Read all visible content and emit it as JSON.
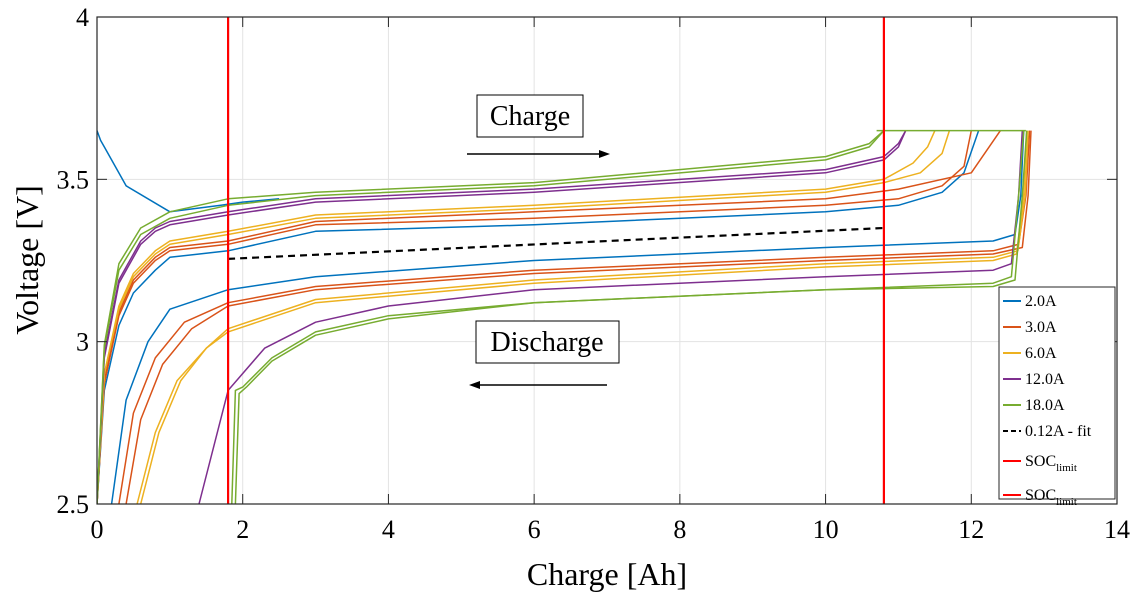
{
  "chart_data": {
    "type": "line",
    "xlabel": "Charge [Ah]",
    "ylabel": "Voltage [V]",
    "xlim": [
      0,
      14
    ],
    "ylim": [
      2.5,
      4
    ],
    "xticks": [
      0,
      2,
      4,
      6,
      8,
      10,
      12,
      14
    ],
    "yticks": [
      2.5,
      3,
      3.5,
      4
    ],
    "ytick_labels": [
      "2.5",
      "3",
      "3.5",
      "4"
    ],
    "grid": true,
    "legend_position": "right",
    "annotations": [
      {
        "text": "Charge",
        "arrow": "right"
      },
      {
        "text": "Discharge",
        "arrow": "left"
      }
    ],
    "soc_limits": [
      1.8,
      10.8
    ],
    "series": [
      {
        "name": "2.0A",
        "color": "#0072BD",
        "curves": [
          {
            "x": [
              0,
              0.1,
              0.3,
              0.5,
              0.8,
              1.0,
              1.8,
              3.0,
              6.0,
              10.0,
              11.0,
              11.6,
              11.9,
              12.1
            ],
            "y": [
              2.5,
              2.85,
              3.05,
              3.15,
              3.22,
              3.26,
              3.28,
              3.34,
              3.36,
              3.4,
              3.42,
              3.46,
              3.52,
              3.65
            ]
          },
          {
            "x": [
              0,
              0.05,
              0.1,
              0.4,
              1.0,
              1.7,
              2.0,
              2.5
            ],
            "y": [
              3.65,
              3.62,
              3.6,
              3.48,
              3.4,
              3.42,
              3.43,
              3.44
            ]
          },
          {
            "x": [
              0.2,
              0.4,
              0.7,
              1.0,
              1.8,
              3.0,
              6.0,
              10.0,
              12.3,
              12.6,
              12.68,
              12.72
            ],
            "y": [
              2.5,
              2.82,
              3.0,
              3.1,
              3.16,
              3.2,
              3.25,
              3.29,
              3.31,
              3.33,
              3.45,
              3.65
            ]
          }
        ]
      },
      {
        "name": "3.0A",
        "color": "#D95319",
        "curves": [
          {
            "x": [
              0,
              0.1,
              0.3,
              0.5,
              0.8,
              1.0,
              1.8,
              3.0,
              6.0,
              10.0,
              11.0,
              11.6,
              11.9,
              12.0
            ],
            "y": [
              2.5,
              2.87,
              3.08,
              3.18,
              3.25,
              3.28,
              3.3,
              3.36,
              3.38,
              3.42,
              3.44,
              3.48,
              3.54,
              3.65
            ]
          },
          {
            "x": [
              0,
              0.1,
              0.3,
              0.5,
              0.8,
              1.0,
              1.8,
              3.0,
              6.0,
              10.0,
              11.0,
              12.0,
              12.4
            ],
            "y": [
              2.5,
              2.88,
              3.09,
              3.19,
              3.26,
              3.29,
              3.31,
              3.37,
              3.4,
              3.44,
              3.47,
              3.52,
              3.65
            ]
          },
          {
            "x": [
              0.3,
              0.5,
              0.8,
              1.2,
              1.8,
              3.0,
              6.0,
              10.0,
              12.3,
              12.65,
              12.75,
              12.8
            ],
            "y": [
              2.5,
              2.78,
              2.95,
              3.06,
              3.12,
              3.17,
              3.22,
              3.26,
              3.28,
              3.3,
              3.45,
              3.65
            ]
          },
          {
            "x": [
              0.4,
              0.6,
              0.9,
              1.3,
              1.8,
              3.0,
              6.0,
              10.0,
              12.3,
              12.7,
              12.78,
              12.82
            ],
            "y": [
              2.5,
              2.76,
              2.93,
              3.04,
              3.11,
              3.16,
              3.21,
              3.25,
              3.27,
              3.29,
              3.45,
              3.65
            ]
          }
        ]
      },
      {
        "name": "6.0A",
        "color": "#EDB120",
        "curves": [
          {
            "x": [
              0,
              0.1,
              0.3,
              0.5,
              0.8,
              1.0,
              1.8,
              3.0,
              6.0,
              10.0,
              10.8,
              11.3,
              11.6,
              11.7
            ],
            "y": [
              2.5,
              2.9,
              3.1,
              3.2,
              3.27,
              3.3,
              3.33,
              3.38,
              3.41,
              3.46,
              3.49,
              3.52,
              3.58,
              3.65
            ]
          },
          {
            "x": [
              0,
              0.1,
              0.3,
              0.5,
              0.8,
              1.0,
              1.8,
              3.0,
              6.0,
              10.0,
              10.8,
              11.2,
              11.4,
              11.5
            ],
            "y": [
              2.5,
              2.9,
              3.11,
              3.21,
              3.28,
              3.31,
              3.34,
              3.39,
              3.42,
              3.47,
              3.5,
              3.55,
              3.6,
              3.65
            ]
          },
          {
            "x": [
              0.55,
              0.8,
              1.1,
              1.5,
              1.8,
              3.0,
              6.0,
              10.0,
              12.3,
              12.62,
              12.72,
              12.76
            ],
            "y": [
              2.5,
              2.72,
              2.88,
              2.98,
              3.03,
              3.12,
              3.18,
              3.23,
              3.25,
              3.27,
              3.45,
              3.65
            ]
          },
          {
            "x": [
              0.6,
              0.85,
              1.15,
              1.5,
              1.8,
              3.0,
              6.0,
              10.0,
              12.3,
              12.64,
              12.74,
              12.78
            ],
            "y": [
              2.5,
              2.72,
              2.88,
              2.98,
              3.04,
              3.13,
              3.19,
              3.24,
              3.26,
              3.28,
              3.45,
              3.65
            ]
          }
        ]
      },
      {
        "name": "12.0A",
        "color": "#7E2F8E",
        "curves": [
          {
            "x": [
              0,
              0.1,
              0.3,
              0.6,
              0.8,
              1.0,
              1.8,
              3.0,
              6.0,
              10.0,
              10.8,
              11.0,
              11.1
            ],
            "y": [
              2.5,
              2.95,
              3.18,
              3.3,
              3.34,
              3.36,
              3.39,
              3.43,
              3.46,
              3.52,
              3.56,
              3.6,
              3.65
            ]
          },
          {
            "x": [
              0,
              0.1,
              0.3,
              0.6,
              0.8,
              1.0,
              1.8,
              3.0,
              6.0,
              10.0,
              10.8,
              11.0,
              11.1
            ],
            "y": [
              2.5,
              2.96,
              3.19,
              3.31,
              3.35,
              3.37,
              3.4,
              3.44,
              3.47,
              3.53,
              3.57,
              3.61,
              3.65
            ]
          },
          {
            "x": [
              1.4,
              1.8,
              2.3,
              3.0,
              4.0,
              6.0,
              10.0,
              12.3,
              12.55,
              12.65,
              12.7
            ],
            "y": [
              2.5,
              2.85,
              2.98,
              3.06,
              3.11,
              3.16,
              3.2,
              3.22,
              3.24,
              3.45,
              3.65
            ]
          }
        ]
      },
      {
        "name": "18.0A",
        "color": "#77AC30",
        "curves": [
          {
            "x": [
              0,
              0.1,
              0.3,
              0.6,
              1.0,
              1.8,
              3.0,
              6.0,
              10.0,
              10.6,
              10.8
            ],
            "y": [
              2.5,
              2.98,
              3.22,
              3.33,
              3.38,
              3.42,
              3.45,
              3.48,
              3.56,
              3.6,
              3.65
            ]
          },
          {
            "x": [
              0,
              0.1,
              0.3,
              0.6,
              1.0,
              1.8,
              3.0,
              6.0,
              10.0,
              10.6,
              10.8
            ],
            "y": [
              2.5,
              2.99,
              3.24,
              3.35,
              3.4,
              3.44,
              3.46,
              3.49,
              3.57,
              3.61,
              3.65
            ]
          },
          {
            "x": [
              10.7,
              12.75
            ],
            "y": [
              3.65,
              3.65
            ]
          },
          {
            "x": [
              1.85,
              1.9,
              2.0,
              2.4,
              3.0,
              4.0,
              6.0,
              10.0,
              12.3,
              12.55,
              12.65,
              12.72
            ],
            "y": [
              2.5,
              2.85,
              2.86,
              2.95,
              3.03,
              3.08,
              3.12,
              3.16,
              3.18,
              3.2,
              3.45,
              3.65
            ]
          },
          {
            "x": [
              1.9,
              1.95,
              2.05,
              2.4,
              3.0,
              4.0,
              6.0,
              10.0,
              12.3,
              12.6,
              12.7,
              12.76
            ],
            "y": [
              2.5,
              2.84,
              2.86,
              2.94,
              3.02,
              3.07,
              3.12,
              3.16,
              3.17,
              3.19,
              3.45,
              3.65
            ]
          }
        ]
      },
      {
        "name": "0.12A - fit",
        "color": "#000000",
        "dashed": true,
        "curves": [
          {
            "x": [
              1.8,
              10.8
            ],
            "y": [
              3.255,
              3.35
            ]
          }
        ]
      },
      {
        "name": "SOC_limit",
        "color": "#FF0000",
        "vertical": true,
        "curves": [
          {
            "x": [
              1.8,
              1.8
            ],
            "y": [
              2.5,
              4
            ]
          }
        ]
      },
      {
        "name": "SOC_limit",
        "color": "#FF0000",
        "vertical": true,
        "curves": [
          {
            "x": [
              10.8,
              10.8
            ],
            "y": [
              2.5,
              4
            ]
          }
        ]
      }
    ]
  }
}
